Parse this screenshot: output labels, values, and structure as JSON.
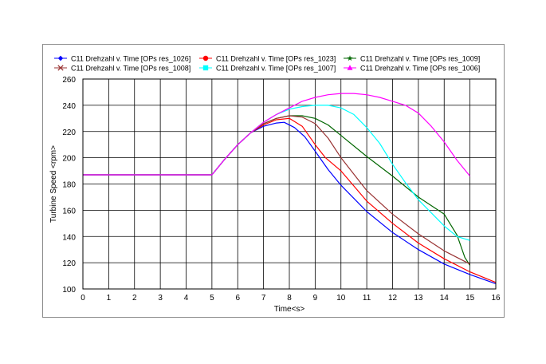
{
  "chart_data": {
    "type": "line",
    "title": "",
    "xlabel": "Time<s>",
    "ylabel": "Turbine Speed <rpm>",
    "xlim": [
      0,
      16
    ],
    "ylim": [
      100,
      260
    ],
    "xticks": [
      0,
      1,
      2,
      3,
      4,
      5,
      6,
      7,
      8,
      9,
      10,
      11,
      12,
      13,
      14,
      15,
      16
    ],
    "yticks": [
      100,
      120,
      140,
      160,
      180,
      200,
      220,
      240,
      260
    ],
    "grid": true,
    "legend_position": "top",
    "series": [
      {
        "name": "C11 Drehzahl v. Time [OPs res_1026]",
        "color": "#0000ff",
        "marker": "diamond",
        "x": [
          0,
          5,
          5.5,
          6,
          6.5,
          7,
          7.5,
          7.8,
          8.2,
          8.6,
          9,
          9.5,
          10,
          11,
          12,
          13,
          14,
          15,
          16
        ],
        "y": [
          187,
          187,
          199,
          210,
          219,
          224,
          226.5,
          227,
          223,
          216,
          205,
          191,
          179,
          159,
          143,
          130,
          119,
          111,
          104
        ]
      },
      {
        "name": "C11 Drehzahl v. Time [OPs res_1023]",
        "color": "#ff0000",
        "marker": "circle",
        "x": [
          0,
          5,
          5.5,
          6,
          6.5,
          7,
          7.5,
          8,
          8.5,
          9,
          9.4,
          10,
          11,
          12,
          13,
          14,
          15,
          16
        ],
        "y": [
          187,
          187,
          199,
          210,
          219,
          225,
          229,
          230,
          224,
          210,
          200,
          190,
          167,
          150,
          135,
          123,
          113,
          105
        ]
      },
      {
        "name": "C11 Drehzahl v. Time [OPs res_1009]",
        "color": "#006600",
        "marker": "star",
        "x": [
          0,
          5,
          5.5,
          6,
          6.5,
          7,
          7.5,
          8,
          8.5,
          9,
          9.5,
          10,
          11,
          12,
          13,
          14,
          14.5,
          14.8,
          15
        ],
        "y": [
          187,
          187,
          199,
          210,
          219,
          226,
          230,
          232,
          232,
          230,
          225,
          217,
          201,
          186,
          170,
          157,
          141,
          124,
          118
        ]
      },
      {
        "name": "C11 Drehzahl v. Time [OPs res_1008]",
        "color": "#993333",
        "marker": "x",
        "x": [
          0,
          5,
          5.5,
          6,
          6.5,
          7,
          7.5,
          8,
          8.5,
          9,
          9.5,
          10,
          11,
          12,
          13,
          14,
          15
        ],
        "y": [
          187,
          187,
          199,
          210,
          219,
          226,
          230,
          232,
          231,
          226,
          215,
          200,
          175,
          157,
          142,
          129,
          119
        ]
      },
      {
        "name": "C11 Drehzahl v. Time [OPs res_1007]",
        "color": "#00ffff",
        "marker": "square",
        "x": [
          0,
          5,
          5.5,
          6,
          6.5,
          7,
          7.5,
          8,
          8.5,
          9,
          9.5,
          10,
          10.5,
          11,
          11.5,
          12,
          12.5,
          13,
          13.5,
          14,
          14.5,
          15
        ],
        "y": [
          187,
          187,
          199,
          210,
          219,
          227,
          233,
          237,
          239,
          240,
          240,
          238,
          233,
          223,
          211,
          195,
          181,
          168,
          158,
          148,
          140,
          137
        ]
      },
      {
        "name": "C11 Drehzahl v. Time [OPs res_1006]",
        "color": "#ff00ff",
        "marker": "triangle",
        "x": [
          0,
          5,
          5.5,
          6,
          6.5,
          7,
          7.5,
          8,
          8.5,
          9,
          9.5,
          10,
          10.5,
          11,
          11.5,
          12,
          12.5,
          13,
          13.5,
          14,
          14.5,
          15
        ],
        "y": [
          187,
          187,
          199,
          210,
          219,
          227,
          233,
          238,
          243,
          246,
          248,
          249,
          249,
          248,
          246,
          243,
          240,
          234,
          224,
          212,
          198,
          186
        ]
      }
    ]
  }
}
